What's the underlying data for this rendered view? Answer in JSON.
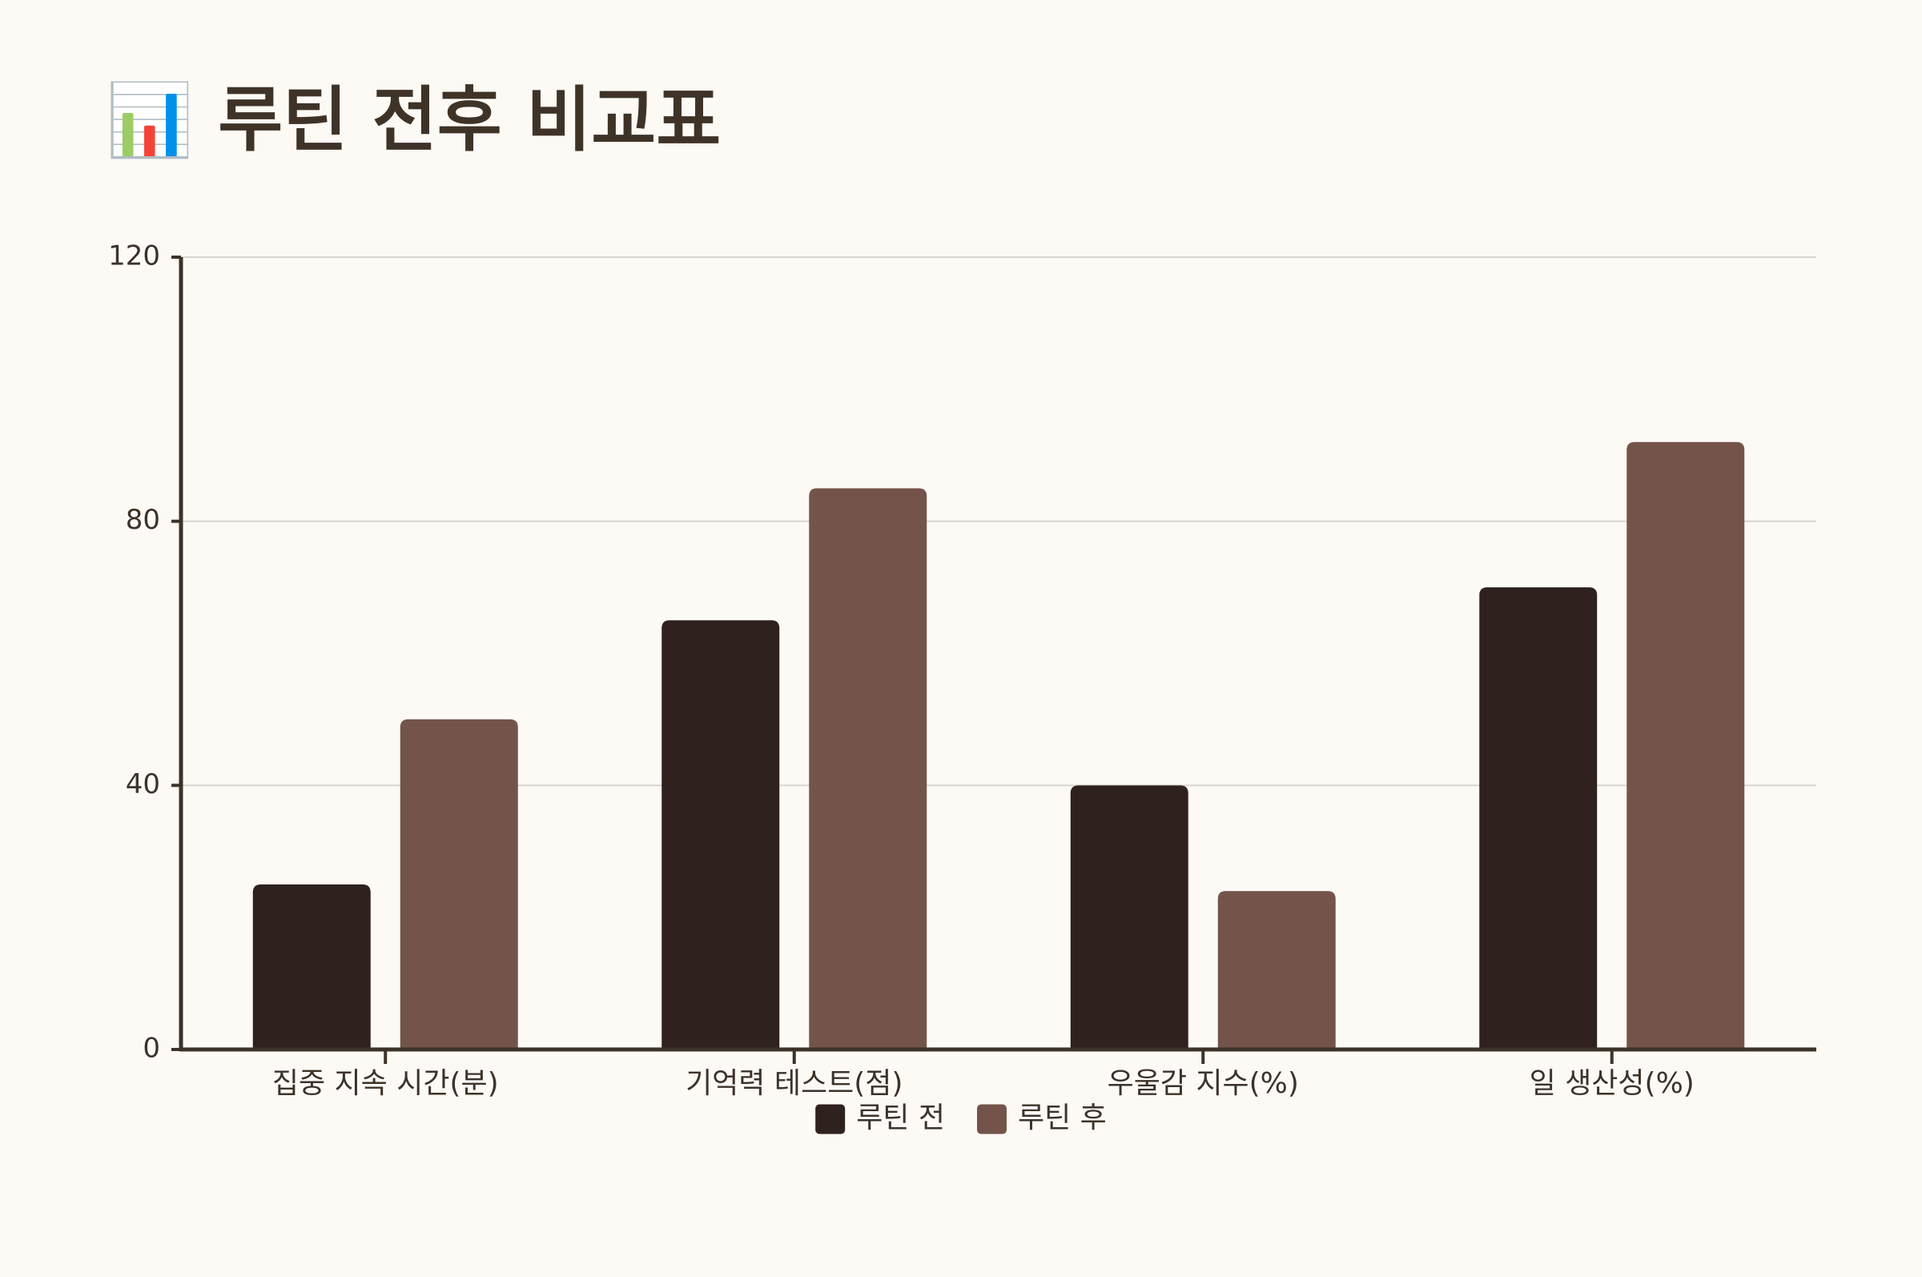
{
  "chart_data": {
    "type": "bar",
    "title": "📊 루틴 전후 비교표",
    "categories": [
      "집중 지속 시간(분)",
      "기억력 테스트(점)",
      "우울감 지수(%)",
      "일 생산성(%)"
    ],
    "series": [
      {
        "name": "루틴 전",
        "color": "#2e211e",
        "values": [
          25,
          65,
          40,
          70
        ]
      },
      {
        "name": "루틴 후",
        "color": "#74544a",
        "values": [
          50,
          85,
          24,
          92
        ]
      }
    ],
    "ylim": [
      0,
      120
    ],
    "yticks": [
      0,
      40,
      80,
      120
    ],
    "grid": true
  }
}
